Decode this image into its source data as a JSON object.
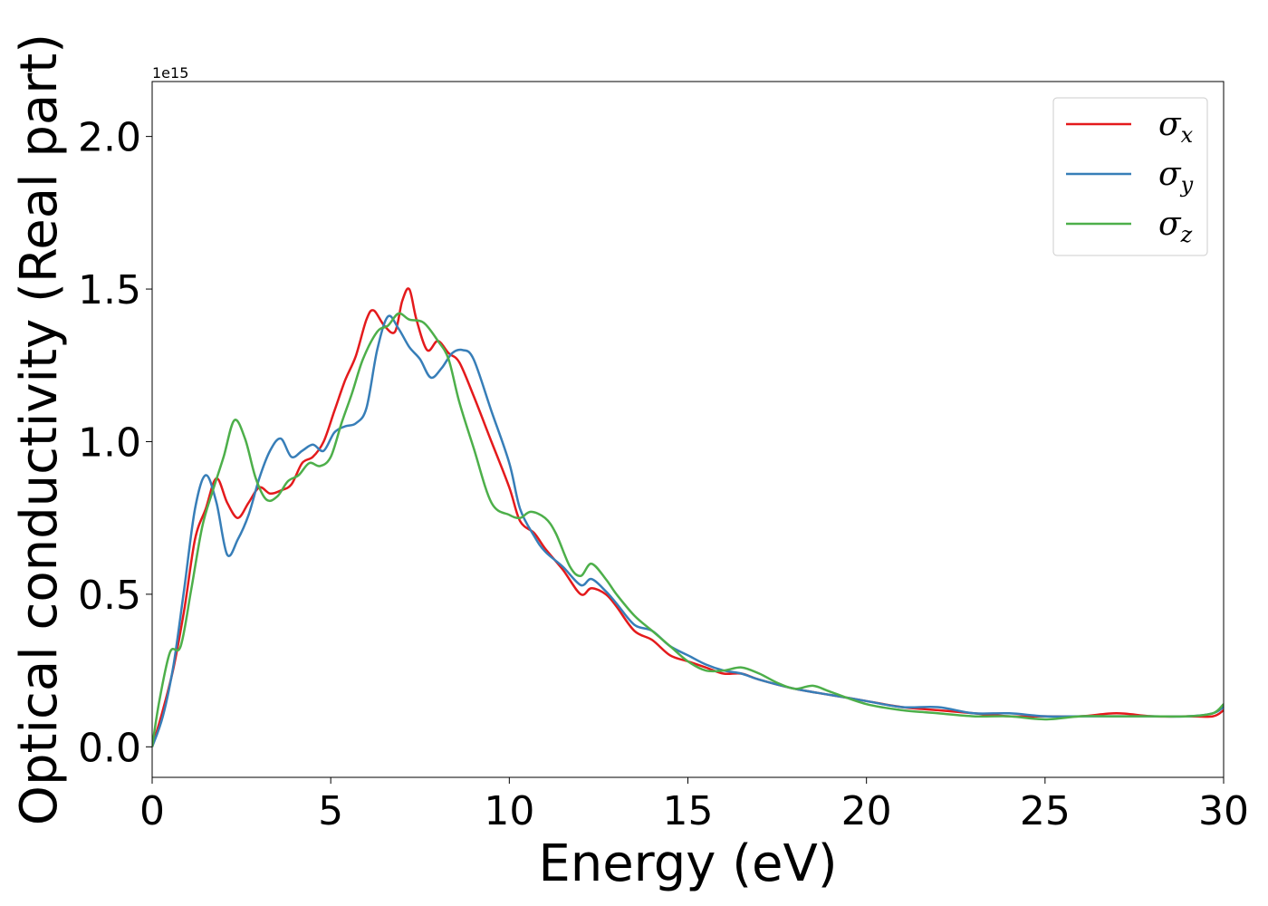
{
  "chart_data": {
    "type": "line",
    "xlabel": "Energy (eV)",
    "ylabel": "Optical conductivity (Real part)",
    "y_offset_label": "1e15",
    "xlim": [
      0,
      30
    ],
    "ylim": [
      -0.1,
      2.18
    ],
    "xticks": [
      0,
      5,
      10,
      15,
      20,
      25,
      30
    ],
    "xtick_labels": [
      "0",
      "5",
      "10",
      "15",
      "20",
      "25",
      "30"
    ],
    "yticks": [
      0.0,
      0.5,
      1.0,
      1.5,
      2.0
    ],
    "ytick_labels": [
      "0.0",
      "0.5",
      "1.0",
      "1.5",
      "2.0"
    ],
    "grid": false,
    "legend_position": "top-right",
    "series": [
      {
        "name": "σ",
        "subscript": "x",
        "color": "#e41a1c",
        "points": [
          [
            0,
            0
          ],
          [
            0.3,
            0.12
          ],
          [
            0.6,
            0.26
          ],
          [
            0.9,
            0.45
          ],
          [
            1.2,
            0.68
          ],
          [
            1.5,
            0.78
          ],
          [
            1.8,
            0.88
          ],
          [
            2.1,
            0.8
          ],
          [
            2.4,
            0.75
          ],
          [
            2.7,
            0.8
          ],
          [
            3.0,
            0.85
          ],
          [
            3.3,
            0.83
          ],
          [
            3.6,
            0.84
          ],
          [
            3.9,
            0.86
          ],
          [
            4.2,
            0.93
          ],
          [
            4.5,
            0.95
          ],
          [
            4.8,
            1.0
          ],
          [
            5.1,
            1.1
          ],
          [
            5.4,
            1.2
          ],
          [
            5.7,
            1.28
          ],
          [
            6.0,
            1.4
          ],
          [
            6.2,
            1.43
          ],
          [
            6.5,
            1.38
          ],
          [
            6.8,
            1.36
          ],
          [
            7.0,
            1.46
          ],
          [
            7.2,
            1.5
          ],
          [
            7.4,
            1.4
          ],
          [
            7.7,
            1.3
          ],
          [
            8.0,
            1.33
          ],
          [
            8.3,
            1.29
          ],
          [
            8.6,
            1.26
          ],
          [
            9.0,
            1.15
          ],
          [
            9.5,
            1.0
          ],
          [
            10.0,
            0.85
          ],
          [
            10.3,
            0.74
          ],
          [
            10.7,
            0.7
          ],
          [
            11.0,
            0.65
          ],
          [
            11.5,
            0.58
          ],
          [
            12.0,
            0.5
          ],
          [
            12.3,
            0.52
          ],
          [
            12.7,
            0.5
          ],
          [
            13.0,
            0.46
          ],
          [
            13.5,
            0.38
          ],
          [
            14.0,
            0.35
          ],
          [
            14.5,
            0.3
          ],
          [
            15.0,
            0.28
          ],
          [
            15.5,
            0.26
          ],
          [
            16.0,
            0.24
          ],
          [
            16.5,
            0.24
          ],
          [
            17.0,
            0.22
          ],
          [
            18.0,
            0.19
          ],
          [
            19.0,
            0.17
          ],
          [
            20.0,
            0.15
          ],
          [
            21.0,
            0.13
          ],
          [
            22.0,
            0.12
          ],
          [
            23.0,
            0.11
          ],
          [
            24.0,
            0.1
          ],
          [
            25.0,
            0.1
          ],
          [
            26.0,
            0.1
          ],
          [
            27.0,
            0.11
          ],
          [
            28.0,
            0.1
          ],
          [
            29.0,
            0.1
          ],
          [
            29.7,
            0.1
          ],
          [
            30.0,
            0.12
          ]
        ]
      },
      {
        "name": "σ",
        "subscript": "y",
        "color": "#377eb8",
        "points": [
          [
            0,
            0
          ],
          [
            0.3,
            0.1
          ],
          [
            0.6,
            0.27
          ],
          [
            0.9,
            0.52
          ],
          [
            1.2,
            0.78
          ],
          [
            1.5,
            0.89
          ],
          [
            1.8,
            0.8
          ],
          [
            2.1,
            0.63
          ],
          [
            2.4,
            0.68
          ],
          [
            2.7,
            0.76
          ],
          [
            3.0,
            0.88
          ],
          [
            3.3,
            0.97
          ],
          [
            3.6,
            1.01
          ],
          [
            3.9,
            0.95
          ],
          [
            4.2,
            0.97
          ],
          [
            4.5,
            0.99
          ],
          [
            4.8,
            0.97
          ],
          [
            5.1,
            1.03
          ],
          [
            5.4,
            1.05
          ],
          [
            5.7,
            1.06
          ],
          [
            6.0,
            1.11
          ],
          [
            6.3,
            1.3
          ],
          [
            6.6,
            1.41
          ],
          [
            6.9,
            1.37
          ],
          [
            7.2,
            1.31
          ],
          [
            7.5,
            1.27
          ],
          [
            7.8,
            1.21
          ],
          [
            8.1,
            1.24
          ],
          [
            8.4,
            1.29
          ],
          [
            8.7,
            1.3
          ],
          [
            9.0,
            1.27
          ],
          [
            9.5,
            1.1
          ],
          [
            10.0,
            0.93
          ],
          [
            10.3,
            0.78
          ],
          [
            10.7,
            0.69
          ],
          [
            11.0,
            0.64
          ],
          [
            11.5,
            0.59
          ],
          [
            12.0,
            0.53
          ],
          [
            12.3,
            0.55
          ],
          [
            12.7,
            0.51
          ],
          [
            13.0,
            0.47
          ],
          [
            13.5,
            0.4
          ],
          [
            14.0,
            0.38
          ],
          [
            14.5,
            0.33
          ],
          [
            15.0,
            0.3
          ],
          [
            15.5,
            0.27
          ],
          [
            16.0,
            0.25
          ],
          [
            16.5,
            0.24
          ],
          [
            17.0,
            0.22
          ],
          [
            18.0,
            0.19
          ],
          [
            19.0,
            0.17
          ],
          [
            20.0,
            0.15
          ],
          [
            21.0,
            0.13
          ],
          [
            22.0,
            0.13
          ],
          [
            23.0,
            0.11
          ],
          [
            24.0,
            0.11
          ],
          [
            25.0,
            0.1
          ],
          [
            26.0,
            0.1
          ],
          [
            27.0,
            0.1
          ],
          [
            28.0,
            0.1
          ],
          [
            29.0,
            0.1
          ],
          [
            29.7,
            0.11
          ],
          [
            30.0,
            0.13
          ]
        ]
      },
      {
        "name": "σ",
        "subscript": "z",
        "color": "#4daf4a",
        "points": [
          [
            0,
            0
          ],
          [
            0.2,
            0.15
          ],
          [
            0.5,
            0.31
          ],
          [
            0.8,
            0.33
          ],
          [
            1.1,
            0.52
          ],
          [
            1.4,
            0.72
          ],
          [
            1.7,
            0.84
          ],
          [
            2.0,
            0.95
          ],
          [
            2.3,
            1.07
          ],
          [
            2.6,
            1.01
          ],
          [
            2.9,
            0.88
          ],
          [
            3.2,
            0.81
          ],
          [
            3.5,
            0.82
          ],
          [
            3.8,
            0.87
          ],
          [
            4.1,
            0.89
          ],
          [
            4.4,
            0.93
          ],
          [
            4.7,
            0.92
          ],
          [
            5.0,
            0.95
          ],
          [
            5.3,
            1.06
          ],
          [
            5.6,
            1.16
          ],
          [
            5.9,
            1.27
          ],
          [
            6.3,
            1.36
          ],
          [
            6.6,
            1.38
          ],
          [
            6.9,
            1.42
          ],
          [
            7.2,
            1.4
          ],
          [
            7.6,
            1.39
          ],
          [
            8.0,
            1.33
          ],
          [
            8.3,
            1.27
          ],
          [
            8.6,
            1.13
          ],
          [
            9.0,
            0.98
          ],
          [
            9.5,
            0.8
          ],
          [
            10.0,
            0.76
          ],
          [
            10.3,
            0.75
          ],
          [
            10.6,
            0.77
          ],
          [
            11.0,
            0.75
          ],
          [
            11.3,
            0.7
          ],
          [
            11.7,
            0.59
          ],
          [
            12.0,
            0.56
          ],
          [
            12.3,
            0.6
          ],
          [
            12.7,
            0.55
          ],
          [
            13.0,
            0.5
          ],
          [
            13.5,
            0.43
          ],
          [
            14.0,
            0.38
          ],
          [
            14.5,
            0.33
          ],
          [
            15.0,
            0.28
          ],
          [
            15.5,
            0.25
          ],
          [
            16.0,
            0.25
          ],
          [
            16.5,
            0.26
          ],
          [
            17.0,
            0.24
          ],
          [
            17.5,
            0.21
          ],
          [
            18.0,
            0.19
          ],
          [
            18.5,
            0.2
          ],
          [
            19.0,
            0.18
          ],
          [
            20.0,
            0.14
          ],
          [
            21.0,
            0.12
          ],
          [
            22.0,
            0.11
          ],
          [
            23.0,
            0.1
          ],
          [
            24.0,
            0.1
          ],
          [
            25.0,
            0.09
          ],
          [
            26.0,
            0.1
          ],
          [
            27.0,
            0.1
          ],
          [
            28.0,
            0.1
          ],
          [
            29.0,
            0.1
          ],
          [
            29.7,
            0.11
          ],
          [
            30.0,
            0.14
          ]
        ]
      }
    ]
  }
}
